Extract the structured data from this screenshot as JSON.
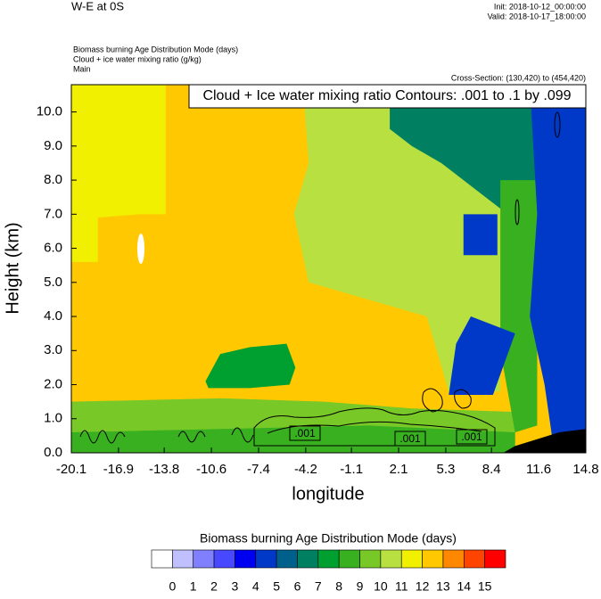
{
  "chart_data": {
    "type": "contour",
    "title": "W-E at 0S",
    "init": "Init: 2018-10-12_00:00:00",
    "valid": "Valid: 2018-10-17_18:00:00",
    "fill_field": "Biomass burning Age Distribution Mode   (days)",
    "line_field": "Cloud + ice water mixing ratio   (g/kg)",
    "domain": "Main",
    "cross_section": "Cross-Section: (130,420) to (454,420)",
    "contour_title": "Cloud + Ice water mixing ratio Contours: .001 to .1 by .099",
    "contour_labels": [
      ".001",
      ".001",
      ".001"
    ],
    "xlabel": "longitude",
    "ylabel": "Height (km)",
    "xlim": [
      -20.1,
      14.8
    ],
    "ylim": [
      0,
      10.8
    ],
    "xticks": [
      -20.1,
      -16.9,
      -13.8,
      -10.6,
      -7.4,
      -4.2,
      -1.1,
      2.1,
      5.3,
      8.4,
      11.6,
      14.8
    ],
    "yticks": [
      {
        "value": 0,
        "label": "0.0"
      },
      {
        "value": 1,
        "label": "1.0"
      },
      {
        "value": 2,
        "label": "2.0"
      },
      {
        "value": 3,
        "label": "3.0"
      },
      {
        "value": 4,
        "label": "4.0"
      },
      {
        "value": 5,
        "label": "5.0"
      },
      {
        "value": 6,
        "label": "6.0"
      },
      {
        "value": 7,
        "label": "7.0"
      },
      {
        "value": 8,
        "label": "8.0"
      },
      {
        "value": 9,
        "label": "9.0"
      },
      {
        "value": 10,
        "label": "10.0"
      }
    ],
    "colorbar": {
      "title": "Biomass burning Age Distribution Mode  (days)",
      "levels": [
        0,
        1,
        2,
        3,
        4,
        5,
        6,
        7,
        8,
        9,
        10,
        11,
        12,
        13,
        14,
        15
      ],
      "colors": [
        "#ffffff",
        "#c0c0ff",
        "#8080ff",
        "#4848ff",
        "#0000f0",
        "#0038c8",
        "#00608c",
        "#008060",
        "#00a030",
        "#38b020",
        "#78c828",
        "#b8e040",
        "#f0f000",
        "#ffc800",
        "#ff8800",
        "#ff4400",
        "#ff0000"
      ]
    },
    "regions": [
      {
        "value": 12,
        "lon": [
          -20.1,
          14.8,
          14.8,
          -20.1
        ],
        "km": [
          0,
          0,
          10.8,
          10.8
        ]
      },
      {
        "value": 11,
        "lon": [
          -20.1,
          -13.7,
          -13.7,
          -15.5,
          -18.3,
          -18.3,
          -20.1
        ],
        "km": [
          10.8,
          10.8,
          7.0,
          7.0,
          6.9,
          5.6,
          5.6
        ]
      },
      {
        "value": 10,
        "lon": [
          -4.4,
          9.0,
          9.0,
          5.5,
          4.0,
          0.0,
          -4.0,
          -5.0,
          -4.0
        ],
        "km": [
          10.8,
          10.8,
          1.8,
          1.8,
          4.0,
          4.5,
          5.0,
          7.0,
          8.5
        ]
      },
      {
        "value": 9,
        "lon": [
          -20.1,
          10.0,
          10.0,
          3.0,
          -3.0,
          -10.0,
          -20.1
        ],
        "km": [
          0,
          0,
          1.2,
          1.3,
          1.5,
          1.6,
          1.5
        ]
      },
      {
        "value": 8,
        "lon": [
          -20.1,
          10.0,
          10.0,
          0.0,
          -10.0,
          -20.1
        ],
        "km": [
          0,
          0,
          0.6,
          0.8,
          0.7,
          0.6
        ]
      },
      {
        "value": 7,
        "lon": [
          -11.0,
          -10.0,
          -8.0,
          -5.5,
          -4.9,
          -5.3,
          -8.0,
          -10.8
        ],
        "km": [
          2.1,
          2.9,
          3.1,
          3.2,
          2.5,
          2.0,
          1.9,
          1.9
        ]
      },
      {
        "value": 6,
        "lon": [
          1.5,
          14.8,
          14.8,
          11.0,
          8.0,
          5.0,
          3.0,
          1.5
        ],
        "km": [
          10.8,
          10.8,
          6.5,
          6.5,
          7.5,
          8.5,
          9.0,
          9.5
        ]
      },
      {
        "value": 8,
        "lon": [
          9.0,
          11.5,
          11.5,
          10.0,
          9.0
        ],
        "km": [
          8.0,
          8.0,
          0.8,
          0.6,
          3.0
        ]
      },
      {
        "value": 4,
        "lon": [
          11.0,
          14.8,
          14.8,
          12.5,
          12.0,
          11.0,
          11.5
        ],
        "km": [
          10.8,
          10.8,
          0,
          0.5,
          2.0,
          4.0,
          7.0
        ]
      },
      {
        "value": 4,
        "lon": [
          5.5,
          8.5,
          10.0,
          7.0,
          6.0
        ],
        "km": [
          1.7,
          1.7,
          3.5,
          4.0,
          3.2
        ]
      },
      {
        "value": 4,
        "lon": [
          6.5,
          8.8,
          8.8,
          6.5
        ],
        "km": [
          5.8,
          5.8,
          7.0,
          7.0
        ]
      }
    ],
    "terrain": {
      "color": "#000000",
      "lon": [
        9.2,
        14.8,
        14.8,
        13.0,
        10.0
      ],
      "km": [
        0,
        0,
        0.7,
        0.6,
        0.2
      ]
    }
  }
}
